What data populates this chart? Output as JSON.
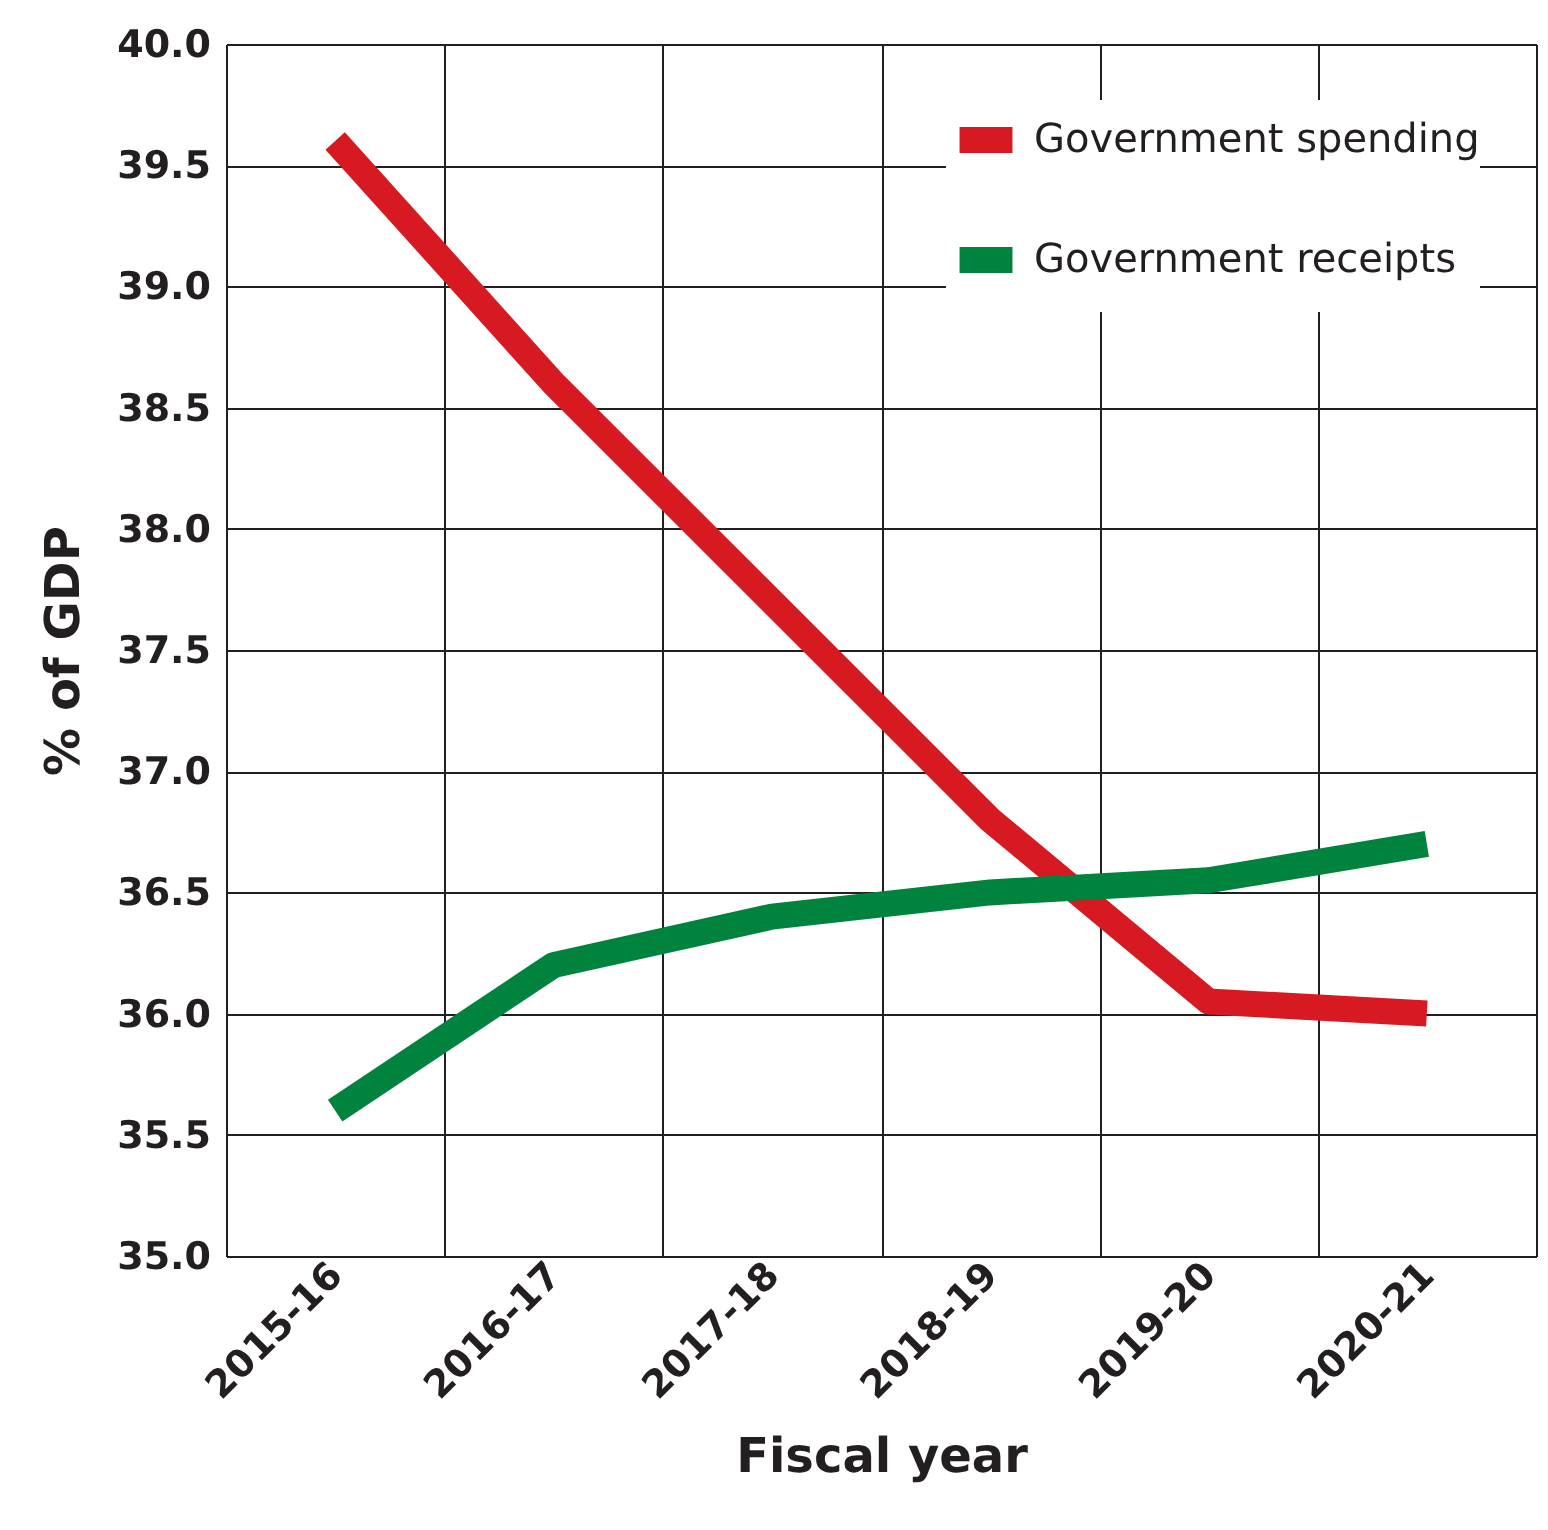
{
  "chart_data": {
    "type": "line",
    "xlabel": "Fiscal year",
    "ylabel": "% of  GDP",
    "categories": [
      "2015-16",
      "2016-17",
      "2017-18",
      "2018-19",
      "2019-20",
      "2020-21"
    ],
    "series": [
      {
        "name": "Government spending",
        "color": "#d71a21",
        "values": [
          39.6,
          38.6,
          37.7,
          36.8,
          36.05,
          36.0
        ]
      },
      {
        "name": "Government receipts",
        "color": "#00843d",
        "values": [
          35.6,
          36.2,
          36.4,
          36.5,
          36.55,
          36.7
        ]
      }
    ],
    "ylim": [
      35.0,
      40.0
    ],
    "yticks": [
      {
        "value": 35,
        "label": "35.0"
      },
      {
        "value": 35.5,
        "label": "35.5"
      },
      {
        "value": 36,
        "label": "36.0"
      },
      {
        "value": 36.5,
        "label": "36.5"
      },
      {
        "value": 37,
        "label": "37.0"
      },
      {
        "value": 37.5,
        "label": "37.5"
      },
      {
        "value": 38,
        "label": "38.0"
      },
      {
        "value": 38.5,
        "label": "38.5"
      },
      {
        "value": 39,
        "label": "39.0"
      },
      {
        "value": 39.5,
        "label": "39.5"
      },
      {
        "value": 40,
        "label": "40.0"
      }
    ],
    "grid": true,
    "legend": "top right",
    "line_style": "solid",
    "marker": "none"
  }
}
